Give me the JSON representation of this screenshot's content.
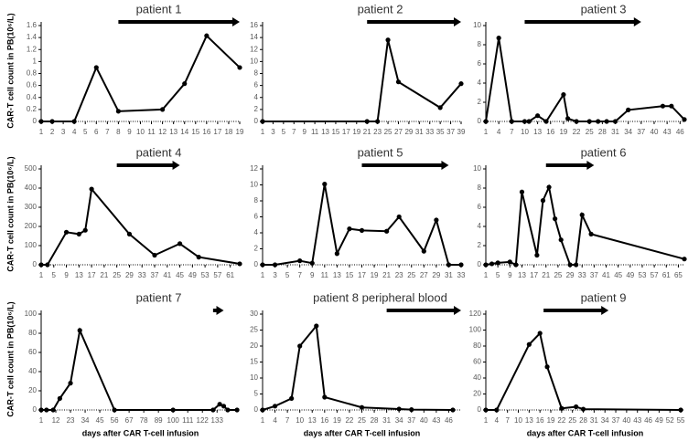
{
  "chart_data": [
    {
      "type": "line",
      "title": "patient 1",
      "ylabel": "CAR-T cell count in PB(10⁶/L)",
      "color": "#000000",
      "x": [
        1,
        2,
        4,
        6,
        8,
        12,
        14,
        16,
        19
      ],
      "values": [
        0,
        0,
        0,
        0.9,
        0.17,
        0.2,
        0.63,
        1.43,
        0.9
      ],
      "xlim": [
        1,
        19
      ],
      "xticks": [
        1,
        2,
        3,
        4,
        5,
        6,
        7,
        8,
        9,
        10,
        11,
        12,
        13,
        14,
        15,
        16,
        17,
        18,
        19
      ],
      "ylim": [
        0,
        1.6
      ],
      "yticks": [
        0,
        0.2,
        0.4,
        0.6,
        0.8,
        1,
        1.2,
        1.4,
        1.6
      ]
    },
    {
      "type": "line",
      "title": "patient 2",
      "color": "#000000",
      "x": [
        1,
        21,
        23,
        25,
        27,
        35,
        39
      ],
      "values": [
        0,
        0,
        0,
        13.6,
        6.6,
        2.3,
        6.3
      ],
      "xlim": [
        1,
        39
      ],
      "xticks": [
        1,
        3,
        5,
        7,
        9,
        11,
        13,
        15,
        17,
        19,
        21,
        23,
        25,
        27,
        29,
        31,
        33,
        35,
        37,
        39
      ],
      "ylim": [
        0,
        16
      ],
      "yticks": [
        0,
        2,
        4,
        6,
        8,
        10,
        12,
        14,
        16
      ]
    },
    {
      "type": "line",
      "title": "patient 3",
      "color": "#000000",
      "x": [
        1,
        4,
        7,
        10,
        11,
        13,
        15,
        19,
        20,
        22,
        25,
        27,
        29,
        31,
        34,
        42,
        44,
        47
      ],
      "values": [
        0,
        8.7,
        0,
        0,
        0,
        0.6,
        0,
        2.8,
        0.3,
        0,
        0,
        0,
        0,
        0,
        1.2,
        1.6,
        1.6,
        0.2
      ],
      "xlim": [
        1,
        47
      ],
      "xticks": [
        1,
        4,
        7,
        10,
        13,
        16,
        19,
        22,
        25,
        28,
        31,
        34,
        37,
        40,
        43,
        46
      ],
      "ylim": [
        0,
        10
      ],
      "yticks": [
        0,
        2,
        4,
        6,
        8,
        10
      ]
    },
    {
      "type": "line",
      "title": "patient 4",
      "ylabel": "CAR-T cell count in PB(10⁶/L)",
      "color": "#000000",
      "x": [
        1,
        3,
        9,
        13,
        15,
        17,
        29,
        37,
        45,
        51,
        64
      ],
      "values": [
        0,
        0,
        170,
        160,
        180,
        395,
        160,
        50,
        110,
        40,
        5
      ],
      "xlim": [
        1,
        64
      ],
      "xticks": [
        1,
        5,
        9,
        13,
        17,
        21,
        25,
        29,
        33,
        37,
        41,
        45,
        49,
        53,
        57,
        61
      ],
      "ylim": [
        0,
        500
      ],
      "yticks": [
        0,
        100,
        200,
        300,
        400,
        500
      ]
    },
    {
      "type": "line",
      "title": "patient 5",
      "color": "#000000",
      "x": [
        1,
        3,
        7,
        9,
        11,
        13,
        15,
        17,
        21,
        23,
        27,
        29,
        31,
        33
      ],
      "values": [
        0,
        0,
        0.5,
        0.2,
        10.1,
        1.4,
        4.5,
        4.3,
        4.2,
        6,
        1.7,
        5.6,
        0,
        0
      ],
      "xlim": [
        1,
        33
      ],
      "xticks": [
        1,
        3,
        5,
        7,
        9,
        11,
        13,
        15,
        17,
        19,
        21,
        23,
        25,
        27,
        29,
        31,
        33
      ],
      "ylim": [
        0,
        12
      ],
      "yticks": [
        0,
        2,
        4,
        6,
        8,
        10,
        12
      ]
    },
    {
      "type": "line",
      "title": "patient 6",
      "color": "#000000",
      "x": [
        1,
        3,
        5,
        9,
        11,
        13,
        18,
        20,
        22,
        24,
        26,
        29,
        31,
        33,
        36,
        67
      ],
      "values": [
        0,
        0.1,
        0.2,
        0.3,
        0,
        7.6,
        1,
        6.7,
        8.1,
        4.8,
        2.6,
        0,
        0,
        5.2,
        3.2,
        0.6
      ],
      "xlim": [
        1,
        67
      ],
      "xticks": [
        1,
        5,
        9,
        13,
        17,
        21,
        25,
        29,
        33,
        37,
        41,
        45,
        49,
        53,
        57,
        61,
        65
      ],
      "ylim": [
        0,
        10
      ],
      "yticks": [
        0,
        2,
        4,
        6,
        8,
        10
      ]
    },
    {
      "type": "line",
      "title": "patient 7",
      "ylabel": "CAR-T cell count in PB(10⁶/L)",
      "xlabel": "days after CAR T-cell infusion",
      "color": "#000000",
      "x": [
        1,
        5,
        10,
        15,
        23,
        30,
        56,
        100,
        130,
        135,
        138,
        141,
        148
      ],
      "values": [
        0,
        0,
        0,
        12,
        28,
        83,
        0,
        0,
        0,
        6,
        4,
        0,
        0
      ],
      "xlim": [
        1,
        150
      ],
      "xticks": [
        1,
        12,
        23,
        34,
        45,
        56,
        67,
        78,
        89,
        100,
        111,
        122,
        133
      ],
      "ylim": [
        0,
        100
      ],
      "yticks": [
        0,
        20,
        40,
        60,
        80,
        100
      ]
    },
    {
      "type": "line",
      "title": "patient 8 peripheral blood",
      "xlabel": "days after CAR T-cell infusion",
      "color": "#000000",
      "x": [
        1,
        4,
        8,
        10,
        14,
        16,
        25,
        34,
        37,
        47
      ],
      "values": [
        0,
        1.2,
        3.6,
        20,
        26.3,
        4,
        0.8,
        0.3,
        0.1,
        0
      ],
      "xlim": [
        1,
        49
      ],
      "xticks": [
        1,
        4,
        7,
        10,
        13,
        16,
        19,
        22,
        25,
        28,
        31,
        34,
        37,
        40,
        43,
        46
      ],
      "ylim": [
        0,
        30
      ],
      "yticks": [
        0,
        5,
        10,
        15,
        20,
        25,
        30
      ]
    },
    {
      "type": "line",
      "title": "patient 9",
      "xlabel": "days after CAR T-cell infusion",
      "color": "#000000",
      "x": [
        1,
        4,
        13,
        16,
        18,
        22,
        26,
        28,
        55
      ],
      "values": [
        0,
        0,
        82,
        96,
        54,
        2,
        4,
        1,
        0
      ],
      "xlim": [
        1,
        56
      ],
      "xticks": [
        1,
        4,
        7,
        10,
        13,
        16,
        19,
        22,
        25,
        28,
        31,
        34,
        37,
        40,
        43,
        46,
        49,
        52,
        55
      ],
      "ylim": [
        0,
        120
      ],
      "yticks": [
        0,
        20,
        40,
        60,
        80,
        100,
        120
      ]
    }
  ]
}
